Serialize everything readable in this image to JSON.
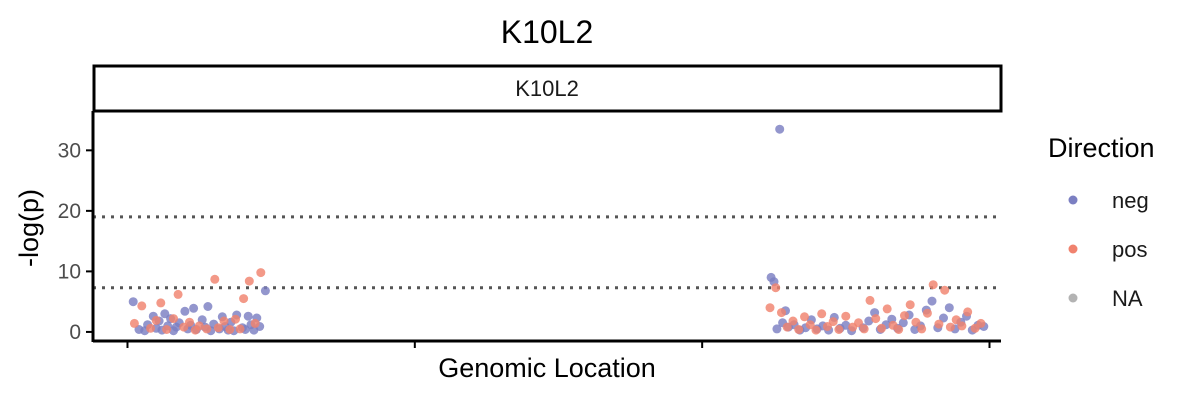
{
  "chart_data": {
    "type": "scatter",
    "title": "K10L2",
    "facet_label": "K10L2",
    "xlabel": "Genomic Location",
    "ylabel": "-log(p)",
    "ylim": [
      -1.5,
      36.5
    ],
    "yticks": [
      0,
      10,
      20,
      30
    ],
    "x_tick_labels": [],
    "thresholds": [
      7.3,
      19
    ],
    "legend": {
      "title": "Direction",
      "position": "right",
      "entries": [
        {
          "label": "neg",
          "color": "#7b7fc2"
        },
        {
          "label": "pos",
          "color": "#f0826e"
        },
        {
          "label": "NA",
          "color": "#b3b3b3"
        }
      ]
    },
    "series": [
      {
        "name": "neg",
        "color": "#7b7fc2",
        "points": [
          [
            0.01,
            5.0
          ],
          [
            0.02,
            0.4
          ],
          [
            0.03,
            0.2
          ],
          [
            0.035,
            1.2
          ],
          [
            0.045,
            2.6
          ],
          [
            0.05,
            0.6
          ],
          [
            0.055,
            1.8
          ],
          [
            0.06,
            0.3
          ],
          [
            0.065,
            3.0
          ],
          [
            0.07,
            1.0
          ],
          [
            0.075,
            2.2
          ],
          [
            0.08,
            0.2
          ],
          [
            0.085,
            0.8
          ],
          [
            0.09,
            1.5
          ],
          [
            0.1,
            3.4
          ],
          [
            0.105,
            0.5
          ],
          [
            0.11,
            1.1
          ],
          [
            0.115,
            3.9
          ],
          [
            0.12,
            0.4
          ],
          [
            0.13,
            2.0
          ],
          [
            0.135,
            0.8
          ],
          [
            0.14,
            4.2
          ],
          [
            0.145,
            0.2
          ],
          [
            0.15,
            1.3
          ],
          [
            0.16,
            0.5
          ],
          [
            0.165,
            2.5
          ],
          [
            0.17,
            0.9
          ],
          [
            0.175,
            0.3
          ],
          [
            0.18,
            1.6
          ],
          [
            0.185,
            0.2
          ],
          [
            0.19,
            2.8
          ],
          [
            0.2,
            0.7
          ],
          [
            0.205,
            0.4
          ],
          [
            0.21,
            2.6
          ],
          [
            0.215,
            1.2
          ],
          [
            0.22,
            0.3
          ],
          [
            0.225,
            2.3
          ],
          [
            0.23,
            0.9
          ],
          [
            0.24,
            6.8
          ],
          [
            1.135,
            33.5
          ],
          [
            1.12,
            9.0
          ],
          [
            1.125,
            8.3
          ],
          [
            1.13,
            0.5
          ],
          [
            1.14,
            1.5
          ],
          [
            1.145,
            3.5
          ],
          [
            1.15,
            0.8
          ],
          [
            1.16,
            1.2
          ],
          [
            1.17,
            0.3
          ],
          [
            1.18,
            0.7
          ],
          [
            1.19,
            2.0
          ],
          [
            1.2,
            0.5
          ],
          [
            1.21,
            1.0
          ],
          [
            1.22,
            0.3
          ],
          [
            1.23,
            2.4
          ],
          [
            1.24,
            0.6
          ],
          [
            1.25,
            1.1
          ],
          [
            1.26,
            0.2
          ],
          [
            1.28,
            0.7
          ],
          [
            1.29,
            1.8
          ],
          [
            1.3,
            3.2
          ],
          [
            1.31,
            0.4
          ],
          [
            1.32,
            1.2
          ],
          [
            1.33,
            2.1
          ],
          [
            1.34,
            0.6
          ],
          [
            1.35,
            1.5
          ],
          [
            1.36,
            2.8
          ],
          [
            1.37,
            0.4
          ],
          [
            1.38,
            1.0
          ],
          [
            1.39,
            3.6
          ],
          [
            1.4,
            5.1
          ],
          [
            1.41,
            0.7
          ],
          [
            1.42,
            2.3
          ],
          [
            1.43,
            4.0
          ],
          [
            1.44,
            0.5
          ],
          [
            1.45,
            1.6
          ],
          [
            1.46,
            2.6
          ],
          [
            1.47,
            0.3
          ],
          [
            1.48,
            1.1
          ],
          [
            1.49,
            0.9
          ]
        ]
      },
      {
        "name": "pos",
        "color": "#f0826e",
        "points": [
          [
            0.012,
            1.4
          ],
          [
            0.025,
            4.3
          ],
          [
            0.04,
            0.6
          ],
          [
            0.05,
            1.9
          ],
          [
            0.058,
            4.8
          ],
          [
            0.068,
            0.4
          ],
          [
            0.08,
            2.2
          ],
          [
            0.088,
            6.2
          ],
          [
            0.098,
            0.8
          ],
          [
            0.108,
            1.6
          ],
          [
            0.118,
            0.3
          ],
          [
            0.125,
            1.0
          ],
          [
            0.138,
            0.5
          ],
          [
            0.152,
            8.7
          ],
          [
            0.158,
            0.7
          ],
          [
            0.168,
            1.8
          ],
          [
            0.178,
            0.4
          ],
          [
            0.188,
            2.1
          ],
          [
            0.196,
            0.5
          ],
          [
            0.202,
            5.5
          ],
          [
            0.212,
            8.4
          ],
          [
            0.222,
            1.4
          ],
          [
            0.232,
            9.8
          ],
          [
            1.118,
            4.0
          ],
          [
            1.128,
            7.3
          ],
          [
            1.138,
            3.2
          ],
          [
            1.148,
            0.8
          ],
          [
            1.158,
            1.8
          ],
          [
            1.168,
            0.4
          ],
          [
            1.178,
            2.5
          ],
          [
            1.188,
            1.2
          ],
          [
            1.198,
            0.3
          ],
          [
            1.208,
            3.0
          ],
          [
            1.218,
            0.9
          ],
          [
            1.228,
            1.7
          ],
          [
            1.238,
            0.4
          ],
          [
            1.25,
            2.6
          ],
          [
            1.262,
            0.8
          ],
          [
            1.272,
            1.5
          ],
          [
            1.282,
            0.5
          ],
          [
            1.292,
            5.2
          ],
          [
            1.302,
            2.2
          ],
          [
            1.312,
            0.6
          ],
          [
            1.322,
            3.8
          ],
          [
            1.332,
            1.1
          ],
          [
            1.342,
            0.4
          ],
          [
            1.352,
            2.7
          ],
          [
            1.362,
            4.5
          ],
          [
            1.372,
            1.6
          ],
          [
            1.382,
            0.5
          ],
          [
            1.392,
            3.1
          ],
          [
            1.402,
            7.8
          ],
          [
            1.412,
            1.3
          ],
          [
            1.422,
            6.9
          ],
          [
            1.432,
            0.8
          ],
          [
            1.442,
            2.0
          ],
          [
            1.452,
            1.0
          ],
          [
            1.462,
            3.3
          ],
          [
            1.475,
            0.6
          ],
          [
            1.485,
            1.4
          ]
        ]
      },
      {
        "name": "NA",
        "color": "#b3b3b3",
        "points": []
      }
    ]
  }
}
